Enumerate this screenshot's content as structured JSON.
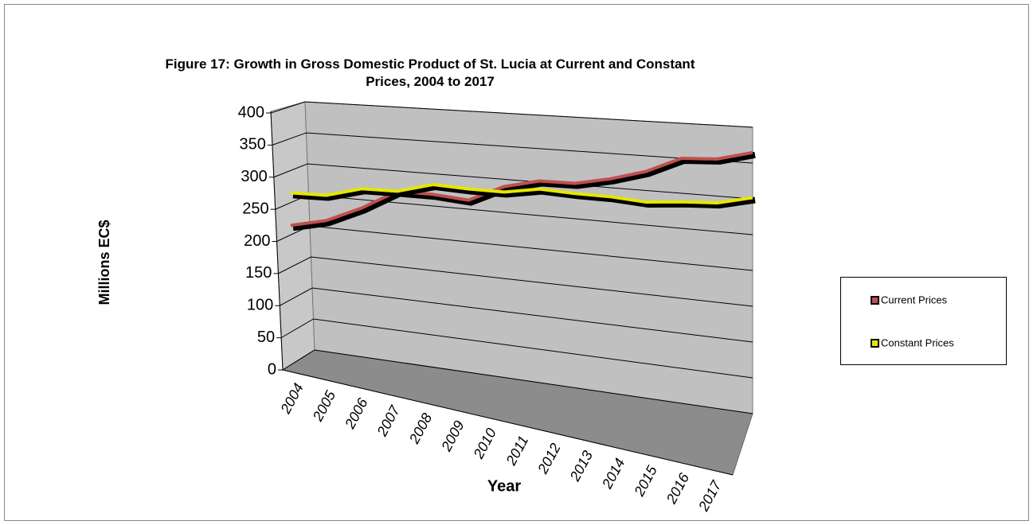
{
  "chart_data": {
    "type": "line3d",
    "title": "Figure 17: Growth in Gross Domestic Product of St. Lucia at Current and Constant Prices, 2004 to 2017",
    "x_label": "Year",
    "y_label": "Millions EC$",
    "categories": [
      "2004",
      "2005",
      "2006",
      "2007",
      "2008",
      "2009",
      "2010",
      "2011",
      "2012",
      "2013",
      "2014",
      "2015",
      "2016",
      "2017"
    ],
    "series": [
      {
        "name": "Current Prices",
        "color": "#c0504d",
        "values": [
          218,
          228,
          250,
          278,
          275,
          268,
          290,
          300,
          298,
          306,
          318,
          338,
          338,
          348
        ]
      },
      {
        "name": "Constant Prices",
        "color": "#e6e600",
        "values": [
          270,
          268,
          280,
          278,
          290,
          285,
          282,
          288,
          283,
          280,
          274,
          276,
          276,
          285
        ]
      }
    ],
    "ylim": [
      0,
      400
    ],
    "yticks": [
      0,
      50,
      100,
      150,
      200,
      250,
      300,
      350,
      400
    ],
    "grid": true,
    "legend": "right"
  }
}
